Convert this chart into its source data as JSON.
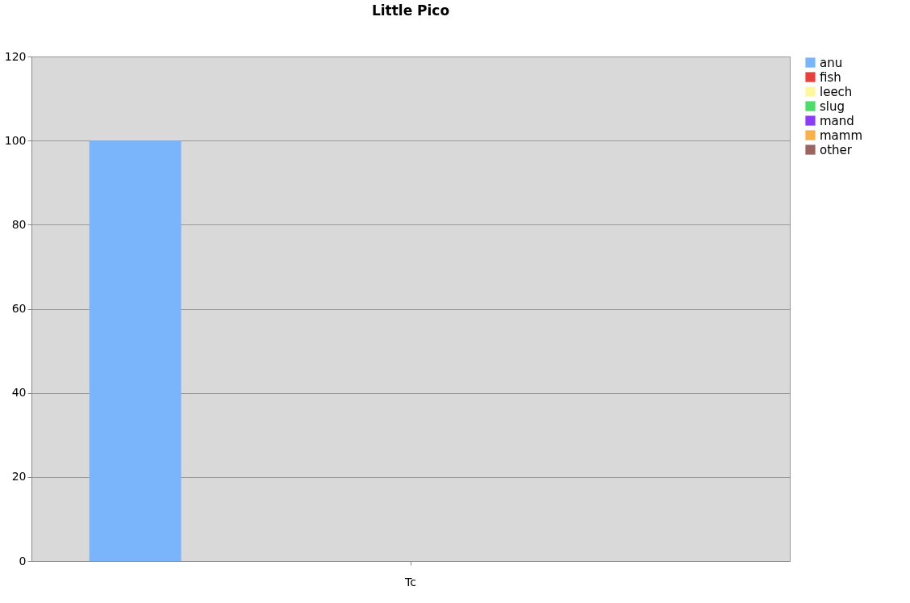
{
  "chart_data": {
    "type": "bar",
    "title": "Little Pico",
    "categories": [
      "Tc"
    ],
    "series": [
      {
        "name": "anu",
        "color": "#7ab5fc",
        "values": [
          100
        ]
      },
      {
        "name": "fish",
        "color": "#e8403a",
        "values": [
          0
        ]
      },
      {
        "name": "leech",
        "color": "#fdf7a0",
        "values": [
          0
        ]
      },
      {
        "name": "slug",
        "color": "#4ddb6a",
        "values": [
          0
        ]
      },
      {
        "name": "mand",
        "color": "#8c3cf5",
        "values": [
          0
        ]
      },
      {
        "name": "mamm",
        "color": "#f8b04d",
        "values": [
          0
        ]
      },
      {
        "name": "other",
        "color": "#9a6560",
        "values": [
          0
        ]
      }
    ],
    "ylim": [
      0,
      120
    ],
    "yticks": [
      0,
      20,
      40,
      60,
      80,
      100,
      120
    ],
    "grid": "y",
    "legend": "right"
  }
}
